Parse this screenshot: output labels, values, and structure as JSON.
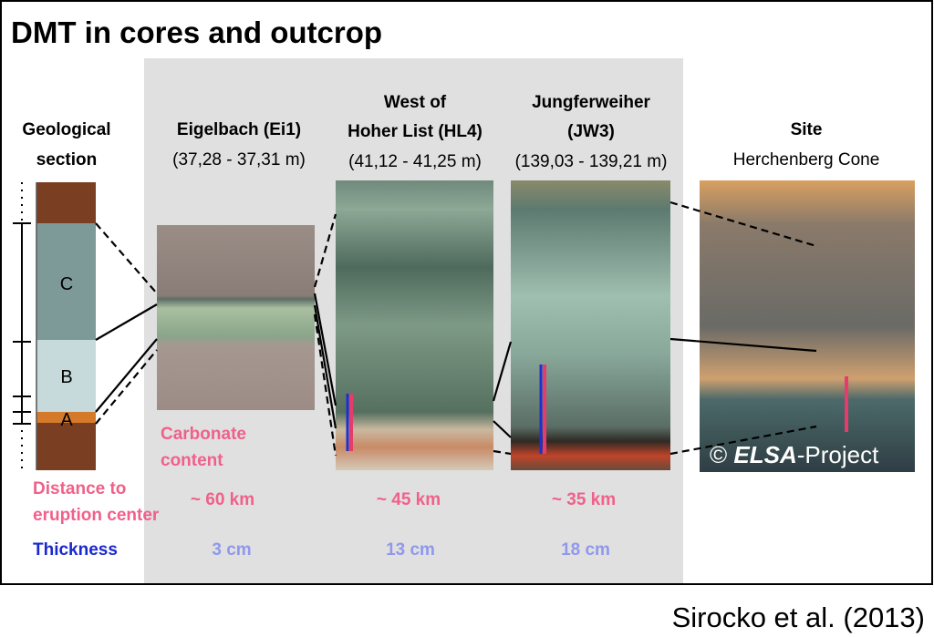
{
  "title": "DMT in cores and outcrop",
  "section": {
    "title_lines": [
      "Geological",
      "section"
    ],
    "layers": [
      "C",
      "B",
      "A"
    ]
  },
  "cores": [
    {
      "title_lines": [
        "Eigelbach (Ei1)"
      ],
      "depth": "(37,28 - 37,31 m)",
      "distance": "~ 60 km",
      "thickness": "3 cm"
    },
    {
      "title_lines": [
        "West of",
        "Hoher List (HL4)"
      ],
      "depth": "(41,12 - 41,25 m)",
      "distance": "~ 45 km",
      "thickness": "13 cm"
    },
    {
      "title_lines": [
        "Jungferweiher",
        "(JW3)"
      ],
      "depth": "(139,03 - 139,21 m)",
      "distance": "~ 35 km",
      "thickness": "18 cm"
    }
  ],
  "carbonate_lines": [
    "Carbonate",
    "content"
  ],
  "row_labels": {
    "distance_lines": [
      "Distance to",
      "eruption center"
    ],
    "thickness": "Thickness"
  },
  "site": {
    "title": "Site",
    "name": "Herchenberg Cone",
    "copyright": "©",
    "brand": "ELSA",
    "brand_suffix": "-Project"
  },
  "citation": "Sirocko et al. (2013)"
}
